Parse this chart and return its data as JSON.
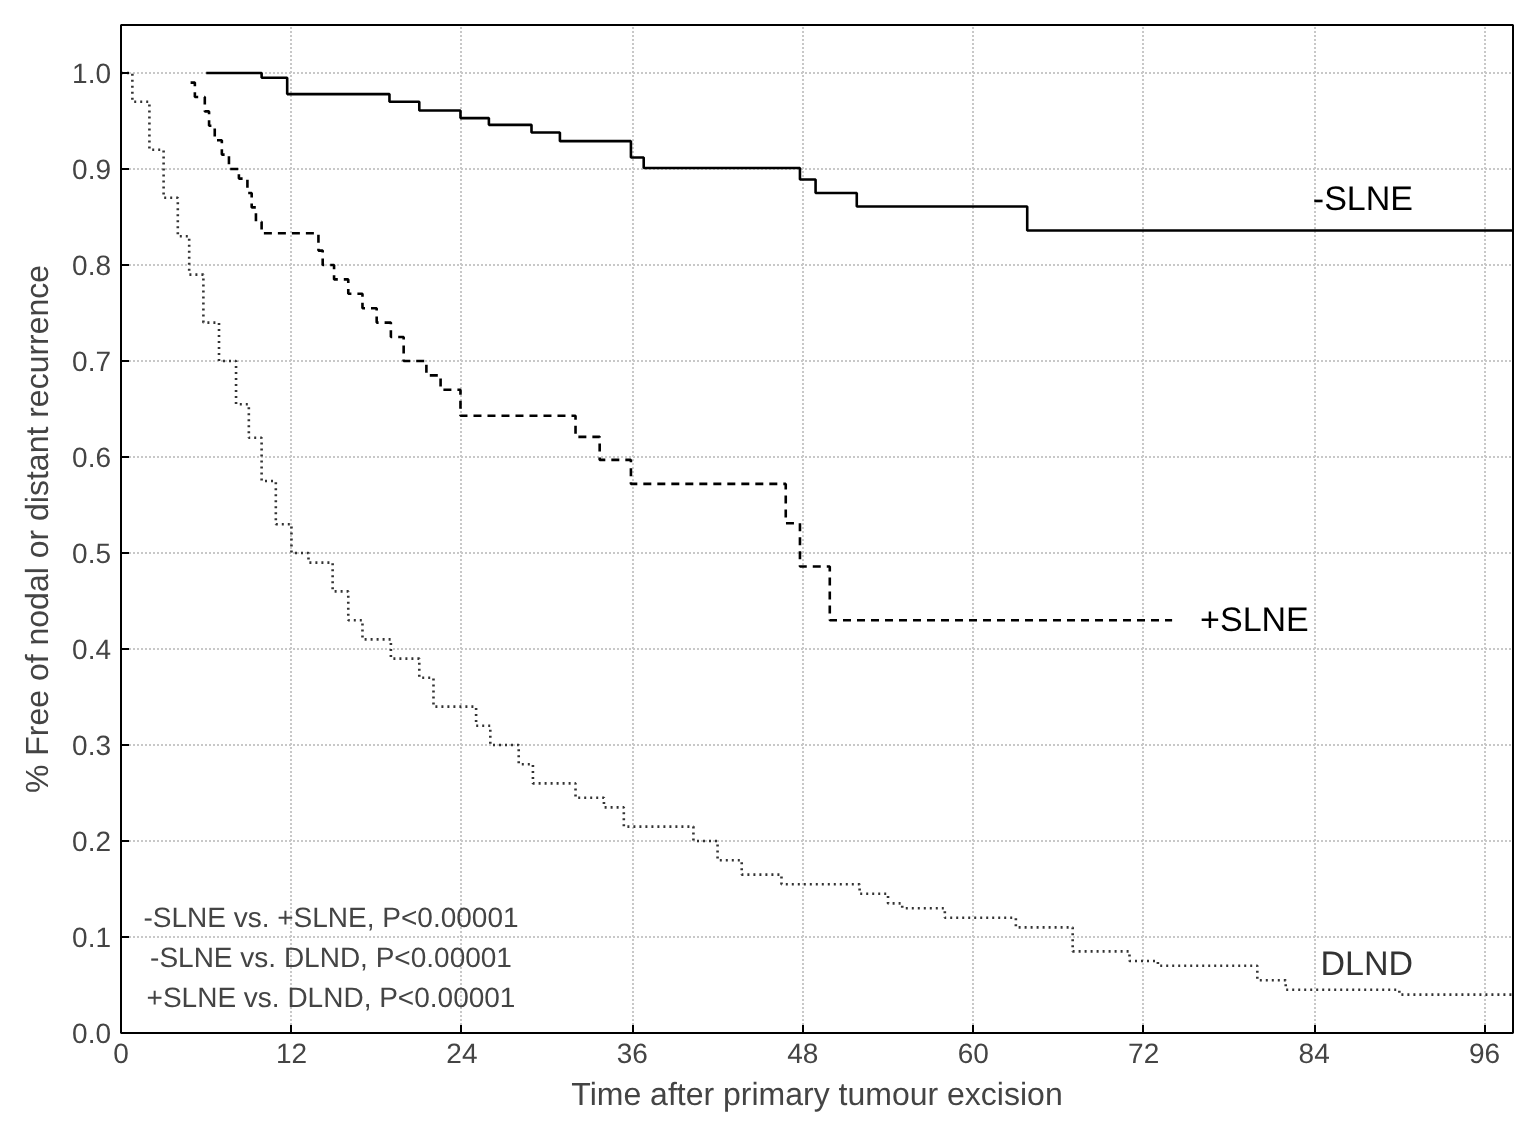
{
  "chart_data": {
    "type": "step",
    "xlabel": "Time after primary tumour excision",
    "ylabel": "% Free of nodal or distant recurrence",
    "xlim": [
      0,
      98
    ],
    "ylim": [
      0,
      1.05
    ],
    "xticks": [
      0,
      12,
      24,
      36,
      48,
      60,
      72,
      84,
      96
    ],
    "yticks": [
      {
        "value": 0,
        "label": "0.0"
      },
      {
        "value": 0.1,
        "label": "0.1"
      },
      {
        "value": 0.2,
        "label": "0.2"
      },
      {
        "value": 0.3,
        "label": "0.3"
      },
      {
        "value": 0.4,
        "label": "0.4"
      },
      {
        "value": 0.5,
        "label": "0.5"
      },
      {
        "value": 0.6,
        "label": "0.6"
      },
      {
        "value": 0.7,
        "label": "0.7"
      },
      {
        "value": 0.8,
        "label": "0.8"
      },
      {
        "value": 0.9,
        "label": "0.9"
      },
      {
        "value": 1,
        "label": "1.0"
      }
    ],
    "grid": true,
    "series": [
      {
        "name": "-SLNE",
        "color": "#000000",
        "line_style": "solid",
        "x": [
          6,
          9.9,
          11.7,
          18.9,
          21,
          23.9,
          25.9,
          28.9,
          30.9,
          35.9,
          36.8,
          47.8,
          48.9,
          51.8,
          63.8,
          98
        ],
        "values": [
          1.0,
          0.995,
          0.978,
          0.97,
          0.961,
          0.953,
          0.946,
          0.938,
          0.929,
          0.912,
          0.901,
          0.889,
          0.875,
          0.861,
          0.836,
          0.836
        ]
      },
      {
        "name": "+SLNE",
        "color": "#000000",
        "line_style": "dashed",
        "x": [
          4.9,
          5.2,
          5.9,
          6.2,
          6.6,
          7.1,
          7.6,
          8.3,
          8.9,
          9.2,
          9.5,
          9.9,
          13.9,
          14.2,
          15,
          16,
          17,
          18,
          19,
          19.9,
          21.5,
          22.5,
          23.9,
          32,
          33.7,
          35.9,
          46.8,
          47.8,
          49.9,
          74
        ],
        "values": [
          0.99,
          0.975,
          0.96,
          0.945,
          0.93,
          0.915,
          0.9,
          0.89,
          0.875,
          0.86,
          0.845,
          0.833,
          0.815,
          0.8,
          0.785,
          0.77,
          0.755,
          0.74,
          0.725,
          0.7,
          0.685,
          0.67,
          0.643,
          0.621,
          0.597,
          0.572,
          0.531,
          0.486,
          0.43,
          0.43
        ]
      },
      {
        "name": "DLND",
        "color": "#333333",
        "line_style": "dotted",
        "x": [
          0,
          0.8,
          2,
          3,
          4,
          4.8,
          5.8,
          6.9,
          8.1,
          9,
          9.9,
          10.9,
          12,
          13.2,
          14.9,
          16,
          17,
          19,
          21,
          22,
          25,
          26,
          28,
          29,
          32,
          34,
          35.4,
          40.3,
          42,
          43.7,
          46.5,
          52,
          54,
          55,
          58,
          63,
          67,
          71,
          73,
          80,
          82,
          90,
          98
        ],
        "values": [
          1.0,
          0.97,
          0.92,
          0.87,
          0.83,
          0.79,
          0.74,
          0.7,
          0.655,
          0.62,
          0.575,
          0.53,
          0.5,
          0.49,
          0.46,
          0.43,
          0.41,
          0.39,
          0.37,
          0.34,
          0.32,
          0.3,
          0.28,
          0.26,
          0.245,
          0.235,
          0.215,
          0.2,
          0.18,
          0.165,
          0.155,
          0.145,
          0.135,
          0.13,
          0.12,
          0.11,
          0.085,
          0.075,
          0.07,
          0.055,
          0.045,
          0.04,
          0.04
        ]
      }
    ],
    "annotations": [
      "-SLNE vs. +SLNE, P<0.00001",
      "-SLNE vs. DLND, P<0.00001",
      "+SLNE vs. DLND, P<0.00001"
    ]
  }
}
